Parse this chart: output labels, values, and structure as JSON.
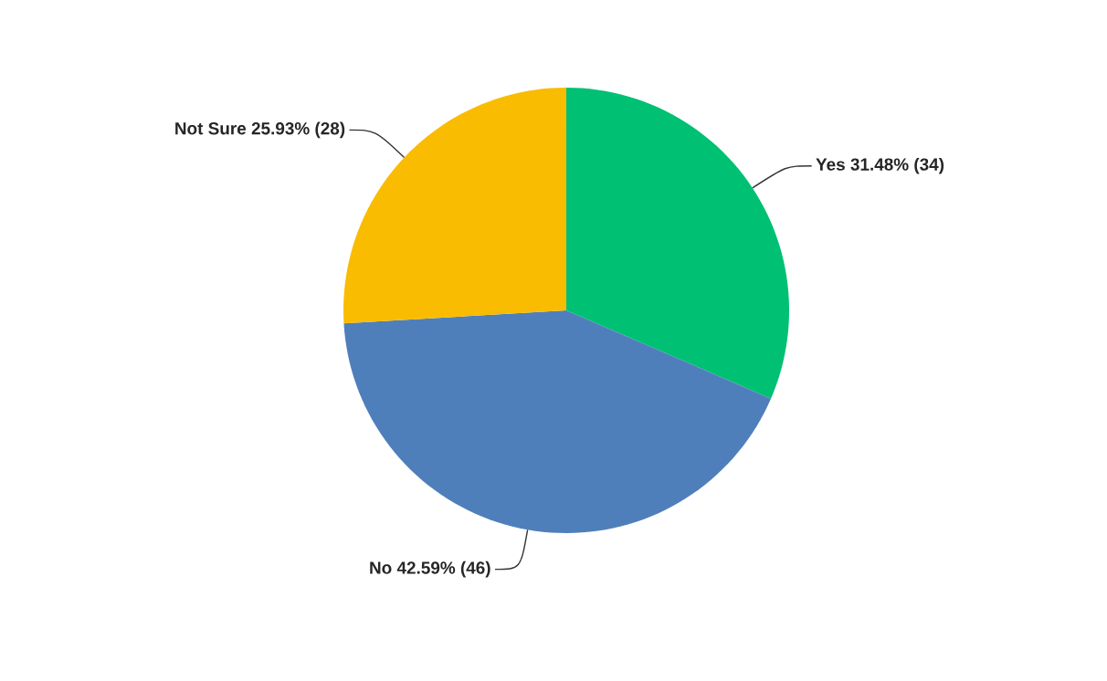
{
  "chart_data": {
    "type": "pie",
    "categories": [
      "Yes",
      "No",
      "Not Sure"
    ],
    "values": [
      34,
      46,
      28
    ],
    "value_labels": [
      "31.48% (34)",
      "42.59% (46)",
      "25.93% (28)"
    ],
    "colors": [
      "#00c073",
      "#4f7fbb",
      "#f9bc00"
    ]
  }
}
